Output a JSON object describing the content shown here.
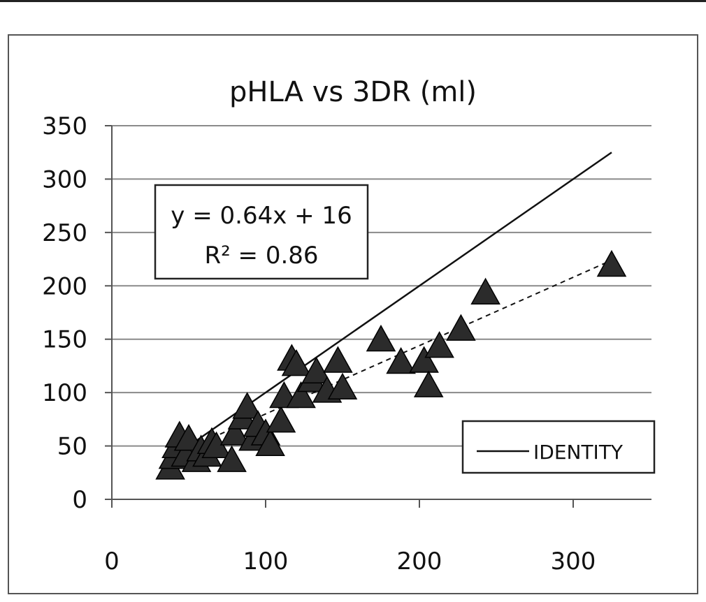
{
  "chart_data": {
    "type": "scatter",
    "title": "pHLA vs 3DR (ml)",
    "xlabel": "",
    "ylabel": "",
    "xlim": [
      0,
      350
    ],
    "ylim": [
      0,
      350
    ],
    "x_ticks": [
      "0",
      "100",
      "200",
      "300"
    ],
    "y_ticks": [
      "0",
      "50",
      "100",
      "150",
      "200",
      "250",
      "300",
      "350"
    ],
    "grid": "horizontal",
    "marker": "triangle",
    "marker_color": "#2b2b2b",
    "points": [
      {
        "x": 38,
        "y": 28
      },
      {
        "x": 40,
        "y": 38
      },
      {
        "x": 42,
        "y": 48
      },
      {
        "x": 44,
        "y": 58
      },
      {
        "x": 48,
        "y": 40
      },
      {
        "x": 50,
        "y": 55
      },
      {
        "x": 55,
        "y": 35
      },
      {
        "x": 58,
        "y": 45
      },
      {
        "x": 62,
        "y": 40
      },
      {
        "x": 65,
        "y": 52
      },
      {
        "x": 68,
        "y": 48
      },
      {
        "x": 78,
        "y": 35
      },
      {
        "x": 80,
        "y": 60
      },
      {
        "x": 85,
        "y": 75
      },
      {
        "x": 88,
        "y": 85
      },
      {
        "x": 92,
        "y": 55
      },
      {
        "x": 95,
        "y": 68
      },
      {
        "x": 100,
        "y": 60
      },
      {
        "x": 103,
        "y": 50
      },
      {
        "x": 110,
        "y": 72
      },
      {
        "x": 112,
        "y": 95
      },
      {
        "x": 117,
        "y": 130
      },
      {
        "x": 120,
        "y": 125
      },
      {
        "x": 123,
        "y": 95
      },
      {
        "x": 130,
        "y": 110
      },
      {
        "x": 133,
        "y": 118
      },
      {
        "x": 140,
        "y": 100
      },
      {
        "x": 147,
        "y": 128
      },
      {
        "x": 150,
        "y": 103
      },
      {
        "x": 175,
        "y": 148
      },
      {
        "x": 188,
        "y": 127
      },
      {
        "x": 203,
        "y": 128
      },
      {
        "x": 206,
        "y": 105
      },
      {
        "x": 213,
        "y": 142
      },
      {
        "x": 227,
        "y": 158
      },
      {
        "x": 243,
        "y": 192
      },
      {
        "x": 325,
        "y": 218
      }
    ],
    "lines": [
      {
        "name": "IDENTITY",
        "style": "solid",
        "x": [
          38,
          325
        ],
        "y": [
          38,
          325
        ]
      },
      {
        "style": "dashed",
        "x": [
          38,
          325
        ],
        "y": [
          40.32,
          224
        ]
      }
    ],
    "annotation": {
      "line1": "y = 0.64x + 16",
      "line2": "R² = 0.86"
    },
    "legend": {
      "label": "IDENTITY",
      "position": "bottom-right"
    }
  }
}
